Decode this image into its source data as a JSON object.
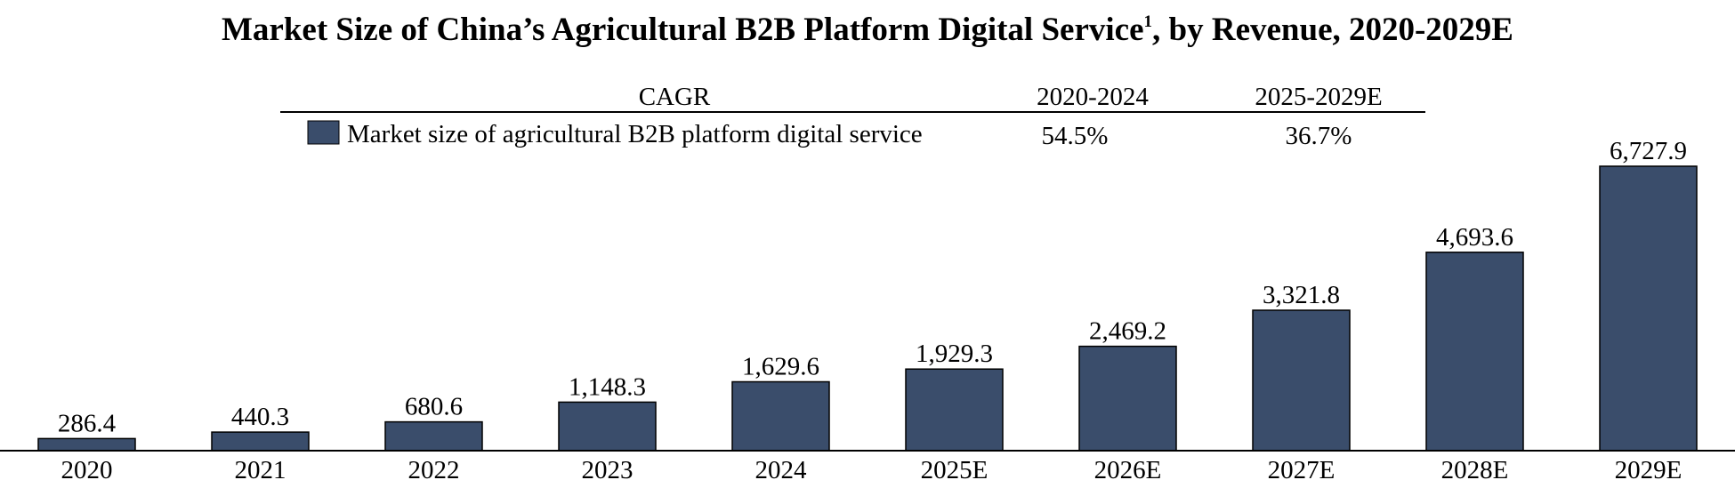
{
  "chart_data": {
    "type": "bar",
    "title": "Market Size of China’s Agricultural B2B Platform Digital Service",
    "title_footnote": "1",
    "title_suffix": ", by Revenue, 2020-2029E",
    "categories": [
      "2020",
      "2021",
      "2022",
      "2023",
      "2024",
      "2025E",
      "2026E",
      "2027E",
      "2028E",
      "2029E"
    ],
    "series": [
      {
        "name": "Market size of agricultural B2B platform digital service",
        "color": "#3a4d6b",
        "values": [
          286.4,
          440.3,
          680.6,
          1148.3,
          1629.6,
          1929.3,
          2469.2,
          3321.8,
          4693.6,
          6727.9
        ],
        "value_labels": [
          "286.4",
          "440.3",
          "680.6",
          "1,148.3",
          "1,629.6",
          "1,929.3",
          "2,469.2",
          "3,321.8",
          "4,693.6",
          "6,727.9"
        ]
      }
    ],
    "cagr_table": {
      "header_label": "CAGR",
      "periods": [
        "2020-2024",
        "2025-2029E"
      ],
      "rows": [
        {
          "series": "Market size of agricultural B2B platform digital service",
          "values": [
            "54.5%",
            "36.7%"
          ]
        }
      ]
    },
    "xlabel": "",
    "ylabel": "",
    "ylim": [
      0,
      6727.9
    ],
    "grid": false,
    "legend": "top-center"
  }
}
